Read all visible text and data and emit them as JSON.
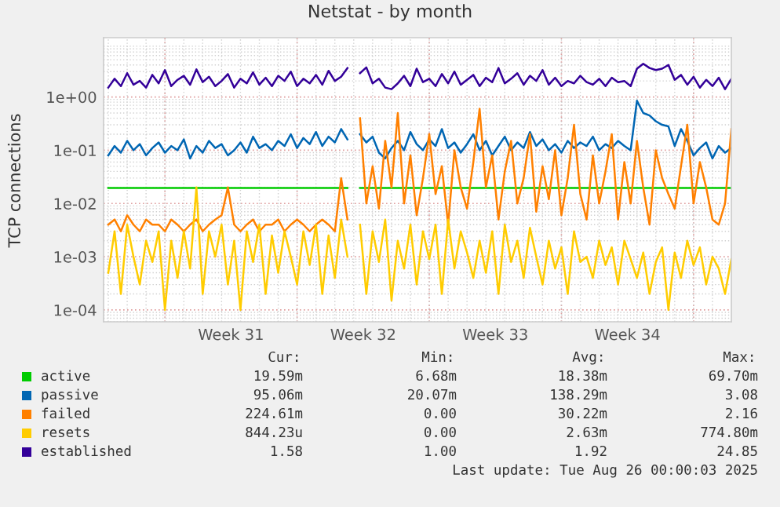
{
  "chart_data": {
    "type": "line",
    "title": "Netstat - by month",
    "ylabel": "TCP connections",
    "log": "y",
    "grid": true,
    "legend": "bottom",
    "marker": "none",
    "line_style": "solid",
    "ylim": [
      6e-05,
      13
    ],
    "yticks": [
      {
        "value": 0.0001,
        "label": "1e-04"
      },
      {
        "value": 0.001,
        "label": "1e-03"
      },
      {
        "value": 0.01,
        "label": "1e-02"
      },
      {
        "value": 0.1,
        "label": "1e-01"
      },
      {
        "value": 1,
        "label": "1e+00"
      }
    ],
    "xlim": [
      "2025-07-23T18:00",
      "2025-08-26T00:00"
    ],
    "xticks": [
      {
        "value": "2025-07-27T00:00",
        "label": null
      },
      {
        "value": "2025-07-30T12:00",
        "label": "Week 31"
      },
      {
        "value": "2025-08-03T00:00",
        "label": null
      },
      {
        "value": "2025-08-06T12:00",
        "label": "Week 32"
      },
      {
        "value": "2025-08-10T00:00",
        "label": null
      },
      {
        "value": "2025-08-13T12:00",
        "label": "Week 33"
      },
      {
        "value": "2025-08-17T00:00",
        "label": null
      },
      {
        "value": "2025-08-20T12:00",
        "label": "Week 34"
      },
      {
        "value": "2025-08-24T00:00",
        "label": null
      }
    ],
    "x": [
      "2025-07-24T00:00",
      "2025-07-24T08:00",
      "2025-07-24T16:00",
      "2025-07-25T00:00",
      "2025-07-25T08:00",
      "2025-07-25T16:00",
      "2025-07-26T00:00",
      "2025-07-26T08:00",
      "2025-07-26T16:00",
      "2025-07-27T00:00",
      "2025-07-27T08:00",
      "2025-07-27T16:00",
      "2025-07-28T00:00",
      "2025-07-28T08:00",
      "2025-07-28T16:00",
      "2025-07-29T00:00",
      "2025-07-29T08:00",
      "2025-07-29T16:00",
      "2025-07-30T00:00",
      "2025-07-30T08:00",
      "2025-07-30T16:00",
      "2025-07-31T00:00",
      "2025-07-31T08:00",
      "2025-07-31T16:00",
      "2025-08-01T00:00",
      "2025-08-01T08:00",
      "2025-08-01T16:00",
      "2025-08-02T00:00",
      "2025-08-02T08:00",
      "2025-08-02T16:00",
      "2025-08-03T00:00",
      "2025-08-03T08:00",
      "2025-08-03T16:00",
      "2025-08-04T00:00",
      "2025-08-04T08:00",
      "2025-08-04T16:00",
      "2025-08-05T00:00",
      "2025-08-05T08:00",
      "2025-08-05T16:00",
      "2025-08-06T00:00",
      "2025-08-06T08:00",
      "2025-08-06T16:00",
      "2025-08-07T00:00",
      "2025-08-07T08:00",
      "2025-08-07T16:00",
      "2025-08-08T00:00",
      "2025-08-08T08:00",
      "2025-08-08T16:00",
      "2025-08-09T00:00",
      "2025-08-09T08:00",
      "2025-08-09T16:00",
      "2025-08-10T00:00",
      "2025-08-10T08:00",
      "2025-08-10T16:00",
      "2025-08-11T00:00",
      "2025-08-11T08:00",
      "2025-08-11T16:00",
      "2025-08-12T00:00",
      "2025-08-12T08:00",
      "2025-08-12T16:00",
      "2025-08-13T00:00",
      "2025-08-13T08:00",
      "2025-08-13T16:00",
      "2025-08-14T00:00",
      "2025-08-14T08:00",
      "2025-08-14T16:00",
      "2025-08-15T00:00",
      "2025-08-15T08:00",
      "2025-08-15T16:00",
      "2025-08-16T00:00",
      "2025-08-16T08:00",
      "2025-08-16T16:00",
      "2025-08-17T00:00",
      "2025-08-17T08:00",
      "2025-08-17T16:00",
      "2025-08-18T00:00",
      "2025-08-18T08:00",
      "2025-08-18T16:00",
      "2025-08-19T00:00",
      "2025-08-19T08:00",
      "2025-08-19T16:00",
      "2025-08-20T00:00",
      "2025-08-20T08:00",
      "2025-08-20T16:00",
      "2025-08-21T00:00",
      "2025-08-21T08:00",
      "2025-08-21T16:00",
      "2025-08-22T00:00",
      "2025-08-22T08:00",
      "2025-08-22T16:00",
      "2025-08-23T00:00",
      "2025-08-23T08:00",
      "2025-08-23T16:00",
      "2025-08-24T00:00",
      "2025-08-24T08:00",
      "2025-08-24T16:00",
      "2025-08-25T00:00",
      "2025-08-25T08:00",
      "2025-08-25T16:00",
      "2025-08-26T00:00"
    ],
    "series": [
      {
        "name": "active",
        "color": "#00cc00",
        "x": [
          "2025-07-24T00:00",
          "2025-08-05T16:00",
          "2025-08-06T00:00",
          "2025-08-06T08:00",
          "2025-08-26T00:00"
        ],
        "values": [
          0.0196,
          0.0196,
          null,
          0.0196,
          0.0196
        ]
      },
      {
        "name": "passive",
        "color": "#0066b3",
        "values": [
          0.08,
          0.12,
          0.09,
          0.15,
          0.1,
          0.13,
          0.08,
          0.11,
          0.14,
          0.09,
          0.12,
          0.1,
          0.16,
          0.07,
          0.12,
          0.09,
          0.15,
          0.11,
          0.13,
          0.08,
          0.1,
          0.14,
          0.09,
          0.18,
          0.11,
          0.13,
          0.1,
          0.15,
          0.12,
          0.2,
          0.11,
          0.17,
          0.13,
          0.22,
          0.12,
          0.18,
          0.14,
          0.25,
          0.16,
          null,
          0.2,
          0.14,
          0.18,
          0.09,
          0.07,
          0.11,
          0.15,
          0.1,
          0.22,
          0.13,
          0.1,
          0.16,
          0.12,
          0.25,
          0.11,
          0.14,
          0.09,
          0.13,
          0.2,
          0.1,
          0.15,
          0.08,
          0.12,
          0.18,
          0.1,
          0.14,
          0.11,
          0.22,
          0.12,
          0.16,
          0.1,
          0.13,
          0.09,
          0.15,
          0.11,
          0.14,
          0.12,
          0.18,
          0.1,
          0.13,
          0.11,
          0.15,
          0.12,
          0.1,
          0.85,
          0.5,
          0.45,
          0.35,
          0.3,
          0.28,
          0.12,
          0.25,
          0.15,
          0.08,
          0.11,
          0.14,
          0.07,
          0.12,
          0.09,
          0.11
        ]
      },
      {
        "name": "failed",
        "color": "#ff8000",
        "values": [
          0.004,
          0.005,
          0.003,
          0.006,
          0.004,
          0.003,
          0.005,
          0.004,
          0.004,
          0.003,
          0.005,
          0.004,
          0.003,
          0.004,
          0.005,
          0.003,
          0.004,
          0.005,
          0.006,
          0.02,
          0.004,
          0.003,
          0.004,
          0.005,
          0.003,
          0.004,
          0.004,
          0.005,
          0.003,
          0.004,
          0.005,
          0.004,
          0.003,
          0.004,
          0.005,
          0.004,
          0.003,
          0.03,
          0.005,
          null,
          0.4,
          0.01,
          0.05,
          0.008,
          0.15,
          0.02,
          0.5,
          0.01,
          0.08,
          0.006,
          0.03,
          0.2,
          0.015,
          0.05,
          0.004,
          0.1,
          0.02,
          0.008,
          0.06,
          0.6,
          0.02,
          0.08,
          0.005,
          0.04,
          0.15,
          0.01,
          0.03,
          0.2,
          0.007,
          0.05,
          0.012,
          0.1,
          0.006,
          0.03,
          0.3,
          0.015,
          0.005,
          0.08,
          0.01,
          0.04,
          0.2,
          0.005,
          0.06,
          0.01,
          0.15,
          0.02,
          0.004,
          0.1,
          0.03,
          0.015,
          0.008,
          0.05,
          0.3,
          0.01,
          0.06,
          0.02,
          0.005,
          0.004,
          0.01,
          0.25
        ]
      },
      {
        "name": "resets",
        "color": "#ffcc00",
        "values": [
          0.0005,
          0.003,
          0.0002,
          0.004,
          0.001,
          0.0003,
          0.002,
          0.0008,
          0.003,
          0.0001,
          0.002,
          0.0004,
          0.003,
          0.0006,
          0.02,
          0.0002,
          0.003,
          0.001,
          0.004,
          0.0003,
          0.002,
          0.0001,
          0.003,
          0.0008,
          0.004,
          0.0002,
          0.0025,
          0.0005,
          0.003,
          0.001,
          0.0003,
          0.003,
          0.0007,
          0.004,
          0.0002,
          0.0025,
          0.0004,
          0.005,
          0.001,
          null,
          0.004,
          0.0002,
          0.003,
          0.0008,
          0.005,
          0.00015,
          0.002,
          0.0006,
          0.004,
          0.0003,
          0.003,
          0.0009,
          0.004,
          0.0002,
          0.005,
          0.0006,
          0.003,
          0.0012,
          0.0004,
          0.002,
          0.0005,
          0.003,
          0.0002,
          0.004,
          0.0008,
          0.002,
          0.0004,
          0.0035,
          0.001,
          0.0003,
          0.002,
          0.0006,
          0.0015,
          0.0002,
          0.003,
          0.0008,
          0.001,
          0.0004,
          0.002,
          0.0007,
          0.0015,
          0.0003,
          0.002,
          0.0009,
          0.0004,
          0.0012,
          0.0002,
          0.0008,
          0.0015,
          0.0001,
          0.0012,
          0.0004,
          0.002,
          0.0007,
          0.0015,
          0.0003,
          0.001,
          0.0006,
          0.0002,
          0.0009
        ]
      },
      {
        "name": "established",
        "color": "#330099",
        "values": [
          1.5,
          2.2,
          1.6,
          2.8,
          1.7,
          2.0,
          1.5,
          2.6,
          1.8,
          3.2,
          1.6,
          2.1,
          2.5,
          1.7,
          3.3,
          1.9,
          2.4,
          1.6,
          2.0,
          2.7,
          1.5,
          2.2,
          1.8,
          2.9,
          1.7,
          2.3,
          1.6,
          2.5,
          2.0,
          3.0,
          1.6,
          2.2,
          1.8,
          2.6,
          1.7,
          3.1,
          2.0,
          2.4,
          3.5,
          null,
          2.8,
          3.6,
          1.8,
          2.2,
          1.5,
          1.4,
          1.8,
          2.5,
          1.6,
          3.4,
          1.9,
          2.2,
          1.6,
          2.7,
          1.8,
          3.0,
          1.7,
          2.1,
          2.6,
          1.6,
          2.3,
          1.9,
          3.5,
          1.8,
          2.2,
          2.8,
          1.7,
          2.5,
          2.0,
          3.2,
          1.7,
          2.3,
          1.6,
          2.0,
          1.8,
          2.5,
          1.9,
          1.7,
          2.2,
          1.6,
          2.3,
          1.9,
          2.0,
          1.6,
          3.4,
          4.2,
          3.5,
          3.2,
          3.4,
          4.0,
          2.1,
          2.6,
          1.7,
          2.4,
          1.5,
          2.1,
          1.6,
          2.3,
          1.4,
          2.2
        ]
      }
    ],
    "annotations": [
      "Cur:",
      "Min:",
      "Avg:",
      "Max:",
      "19.59m",
      "6.68m",
      "18.38m",
      "69.70m",
      "95.06m",
      "20.07m",
      "138.29m",
      "3.08",
      "224.61m",
      "0.00",
      "30.22m",
      "2.16",
      "844.23u",
      "0.00",
      "2.63m",
      "774.80m",
      "1.58",
      "1.00",
      "1.92",
      "24.85",
      "Last update: Tue Aug 26 00:00:03 2025"
    ]
  }
}
